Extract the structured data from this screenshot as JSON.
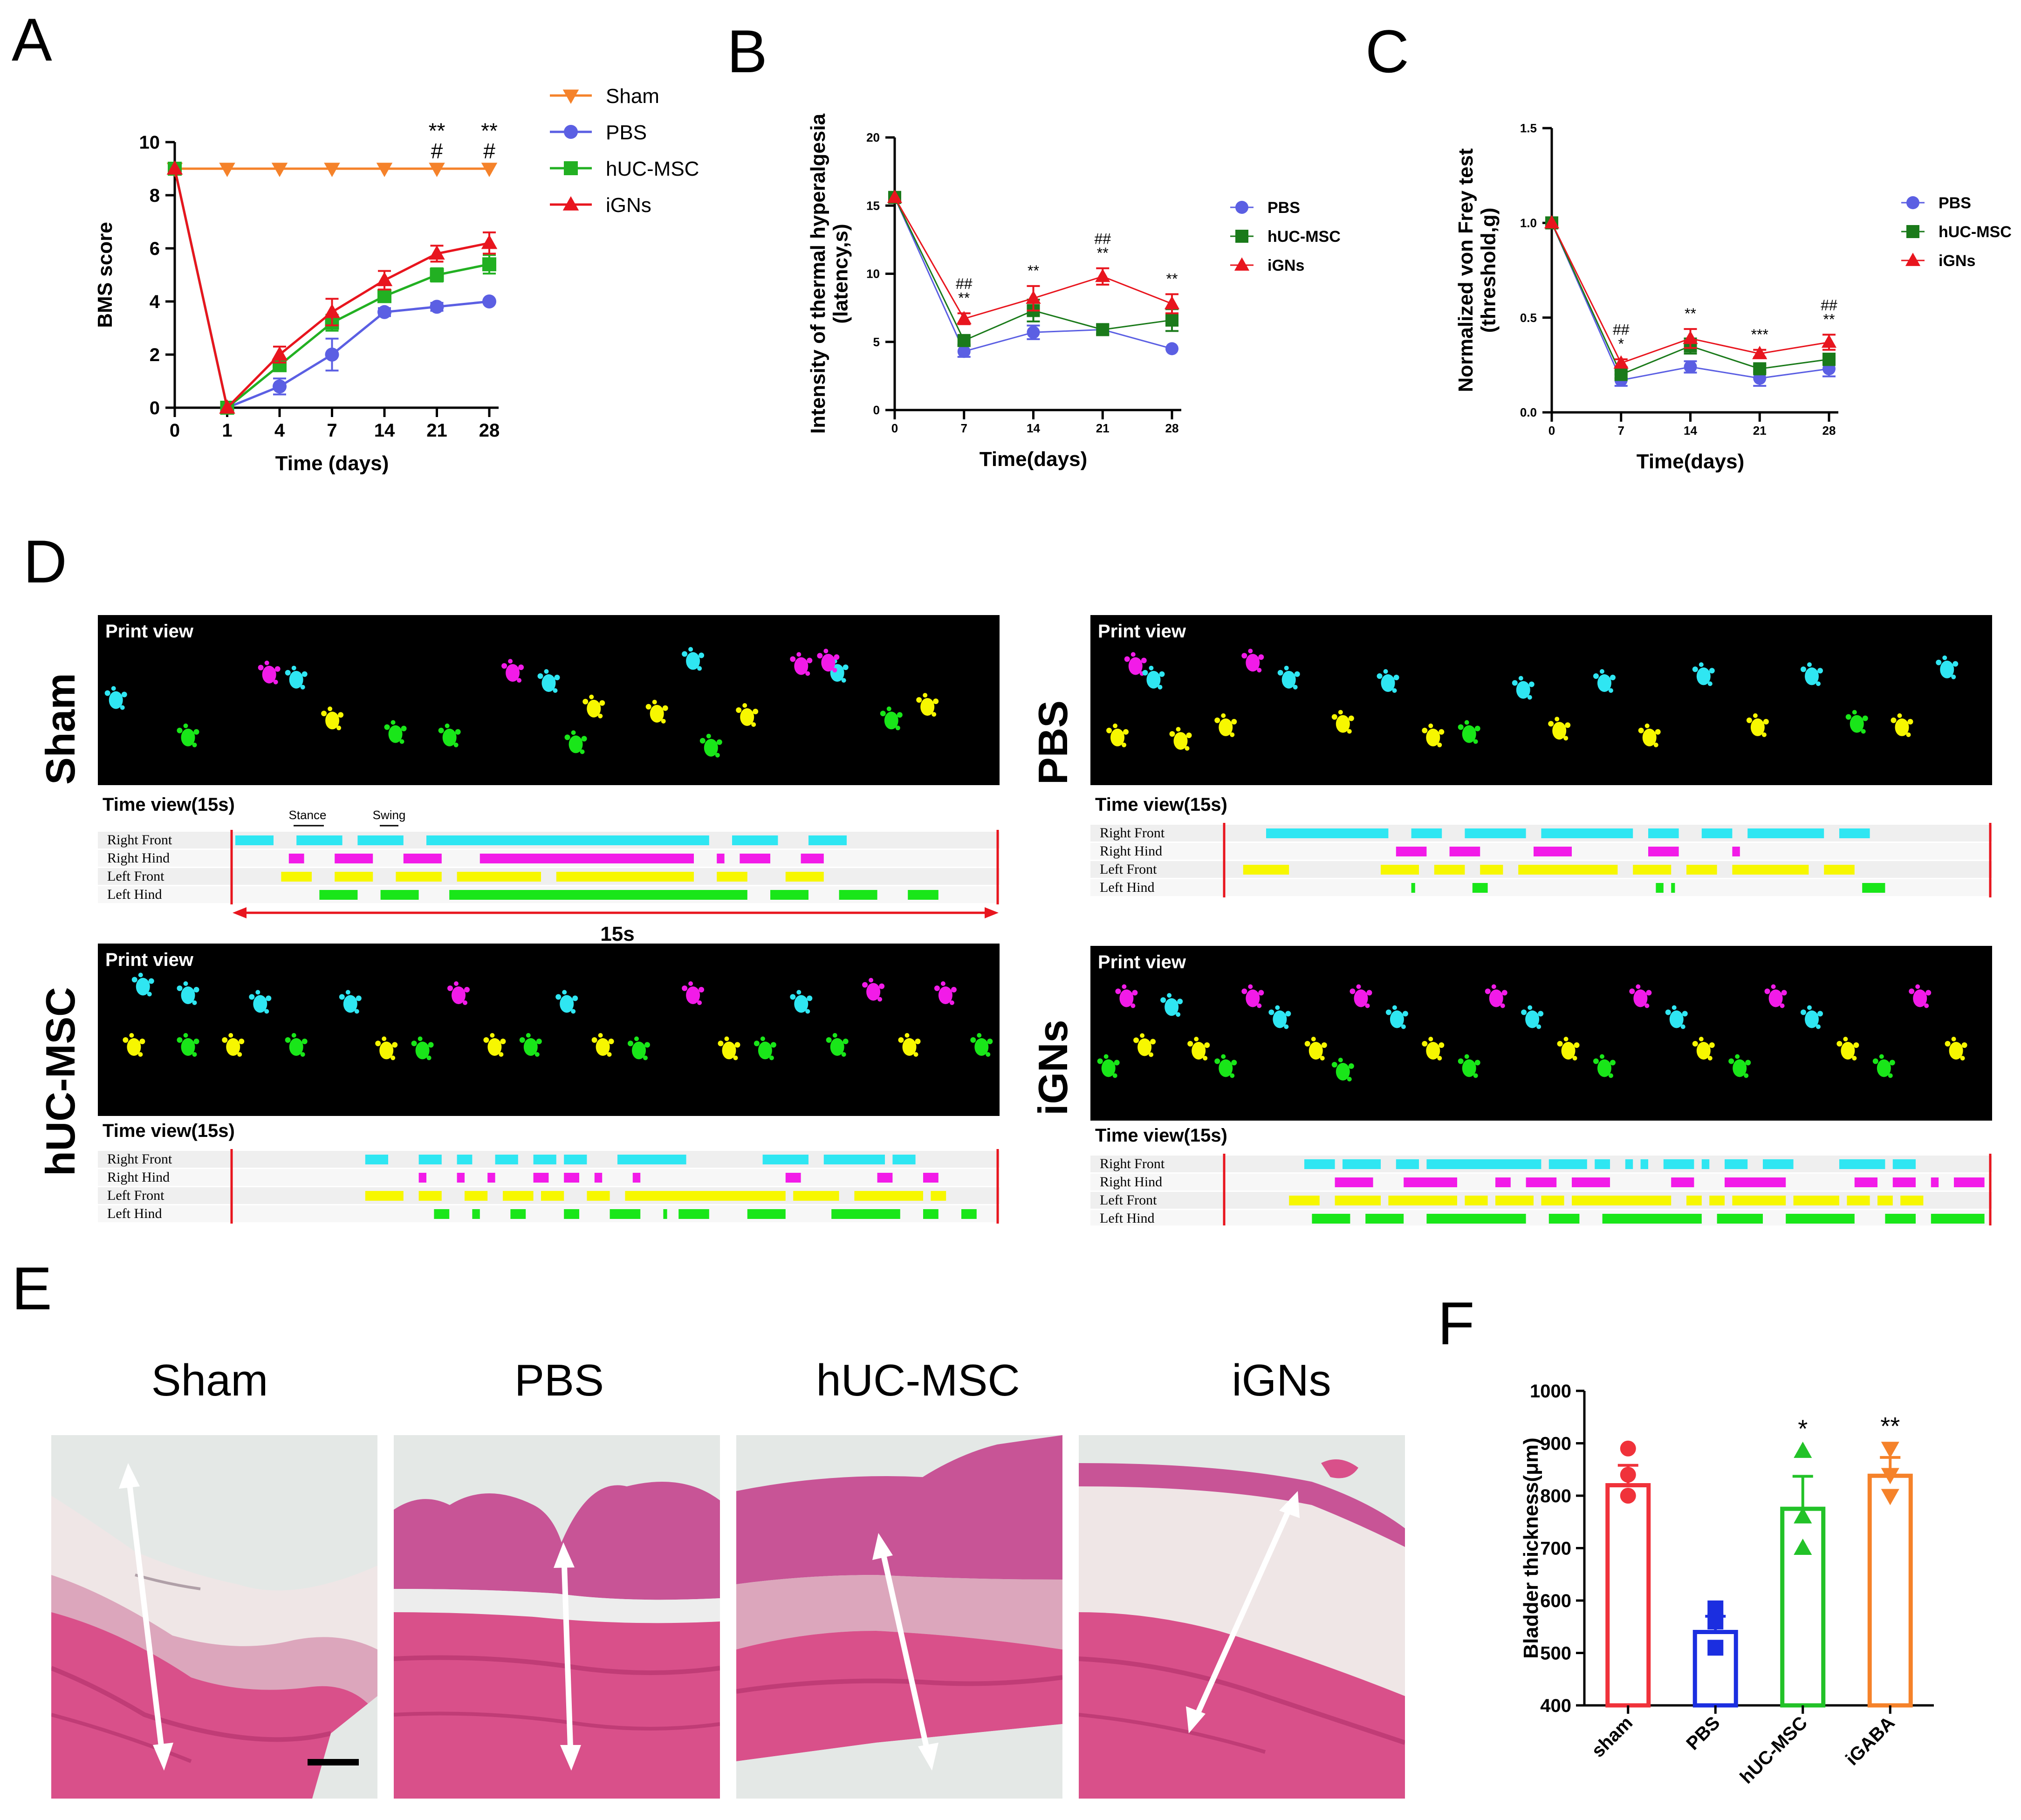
{
  "panel_labels": {
    "A": "A",
    "B": "B",
    "C": "C",
    "D": "D",
    "E": "E",
    "F": "F"
  },
  "colors": {
    "sham": "#F5822A",
    "pbs": "#5B5FE3",
    "hucmsc": "#22B022",
    "ignS": "#E8151E",
    "dark_green": "#1A7A1A",
    "f_sham": "#F0323A",
    "f_pbs": "#1B2EE0",
    "f_huc": "#22C228",
    "f_igaba": "#F5822A",
    "cyan": "#2FE6F2",
    "magenta": "#F21BE8",
    "yellow": "#F7F700",
    "green": "#19E619"
  },
  "chart_data": [
    {
      "id": "A",
      "type": "line",
      "title": "",
      "xlabel": "Time (days)",
      "ylabel": "BMS score",
      "categories": [
        "0",
        "1",
        "4",
        "7",
        "14",
        "21",
        "28"
      ],
      "ylim": [
        0,
        10
      ],
      "yticks": [
        "0",
        "2",
        "4",
        "6",
        "8",
        "10"
      ],
      "legend": "top-right",
      "series": [
        {
          "name": "Sham",
          "marker": "triangle-down",
          "values": [
            9,
            9,
            9,
            9,
            9,
            9,
            9
          ],
          "err": [
            0,
            0,
            0,
            0,
            0,
            0,
            0
          ]
        },
        {
          "name": "PBS",
          "marker": "circle",
          "values": [
            9,
            0,
            0.8,
            2.0,
            3.6,
            3.8,
            4.0
          ],
          "err": [
            0,
            0,
            0.3,
            0.6,
            0.15,
            0.15,
            0.05
          ]
        },
        {
          "name": "hUC-MSC",
          "marker": "square",
          "values": [
            9,
            0,
            1.6,
            3.2,
            4.2,
            5.0,
            5.4
          ],
          "err": [
            0,
            0,
            0.2,
            0.3,
            0.15,
            0.25,
            0.35
          ]
        },
        {
          "name": "iGNs",
          "marker": "triangle-up",
          "values": [
            9,
            0,
            2.0,
            3.6,
            4.8,
            5.8,
            6.2
          ],
          "err": [
            0,
            0,
            0.3,
            0.5,
            0.35,
            0.3,
            0.4
          ]
        }
      ],
      "annotations": [
        {
          "category": "21",
          "lines": [
            "**",
            "#"
          ]
        },
        {
          "category": "28",
          "lines": [
            "**",
            "#"
          ]
        }
      ]
    },
    {
      "id": "B",
      "type": "line",
      "title": "",
      "xlabel": "Time(days)",
      "ylabel": "Intensity of thermal hyperalgesia (latency,s)",
      "ylabel_lines": [
        "Intensity of thermal hyperalgesia",
        "(latency,s)"
      ],
      "categories": [
        "0",
        "7",
        "14",
        "21",
        "28"
      ],
      "ylim": [
        0,
        20
      ],
      "yticks": [
        "0",
        "5",
        "10",
        "15",
        "20"
      ],
      "legend": "right",
      "series": [
        {
          "name": "PBS",
          "marker": "circle",
          "values": [
            15.6,
            4.3,
            5.7,
            5.9,
            4.5
          ],
          "err": [
            0,
            0.4,
            0.5,
            0.4,
            0
          ]
        },
        {
          "name": "hUC-MSC",
          "marker": "square",
          "values": [
            15.6,
            5.1,
            7.3,
            5.9,
            6.6
          ],
          "err": [
            0,
            0.3,
            0.8,
            0.3,
            0.8
          ]
        },
        {
          "name": "iGNs",
          "marker": "triangle-up",
          "values": [
            15.6,
            6.7,
            8.2,
            9.8,
            7.8
          ],
          "err": [
            0,
            0.4,
            0.9,
            0.6,
            0.7
          ]
        }
      ],
      "annotations": [
        {
          "category": "7",
          "lines": [
            "##",
            "**"
          ]
        },
        {
          "category": "14",
          "lines": [
            "**"
          ]
        },
        {
          "category": "21",
          "lines": [
            "##",
            "**"
          ]
        },
        {
          "category": "28",
          "lines": [
            "**"
          ]
        }
      ]
    },
    {
      "id": "C",
      "type": "line",
      "title": "",
      "xlabel": "Time(days)",
      "ylabel": "Normalized von Frey test (threshold,g)",
      "ylabel_lines": [
        "Normalized von Frey test",
        "(threshold,g)"
      ],
      "categories": [
        "0",
        "7",
        "14",
        "21",
        "28"
      ],
      "ylim": [
        0,
        1.5
      ],
      "yticks": [
        "0.0",
        "0.5",
        "1.0",
        "1.5"
      ],
      "legend": "right",
      "series": [
        {
          "name": "PBS",
          "marker": "circle",
          "values": [
            1.0,
            0.17,
            0.24,
            0.18,
            0.23
          ],
          "err": [
            0,
            0.03,
            0.03,
            0.04,
            0.04
          ]
        },
        {
          "name": "hUC-MSC",
          "marker": "square",
          "values": [
            1.0,
            0.2,
            0.35,
            0.23,
            0.28
          ],
          "err": [
            0,
            0.02,
            0.04,
            0.02,
            0.03
          ]
        },
        {
          "name": "iGNs",
          "marker": "triangle-up",
          "values": [
            1.0,
            0.26,
            0.39,
            0.31,
            0.37
          ],
          "err": [
            0,
            0.02,
            0.05,
            0.02,
            0.04
          ]
        }
      ],
      "annotations": [
        {
          "category": "7",
          "lines": [
            "##",
            "*"
          ]
        },
        {
          "category": "14",
          "lines": [
            "**"
          ]
        },
        {
          "category": "21",
          "lines": [
            "***"
          ]
        },
        {
          "category": "28",
          "lines": [
            "##",
            "**"
          ]
        }
      ]
    },
    {
      "id": "F",
      "type": "bar",
      "title": "",
      "xlabel": "",
      "ylabel": "Bladder thickness(μm)",
      "categories": [
        "sham",
        "PBS",
        "hUC-MSC",
        "iGABA"
      ],
      "values": [
        820,
        540,
        775,
        838
      ],
      "err": [
        38,
        30,
        62,
        35
      ],
      "points": [
        [
          890,
          840,
          800
        ],
        [
          585,
          560,
          510
        ],
        [
          885,
          760,
          700
        ],
        [
          890,
          840,
          800
        ]
      ],
      "markers": [
        "circle",
        "square",
        "triangle-up",
        "triangle-down"
      ],
      "ylim": [
        400,
        1000
      ],
      "yticks": [
        "400",
        "500",
        "600",
        "700",
        "800",
        "900",
        "1000"
      ],
      "annotations": [
        "",
        "",
        "*",
        "**"
      ]
    }
  ],
  "panel_D": {
    "print_view_label": "Print view",
    "time_view_label": "Time view(15s)",
    "row_labels": [
      "Right Front",
      "Right Hind",
      "Left Front",
      "Left Hind"
    ],
    "stance_label": "Stance",
    "swing_label": "Swing",
    "duration_label": "15s",
    "groups": [
      {
        "name": "Sham",
        "rows": [
          [
            [
              0.0,
              0.05
            ],
            [
              0.08,
              0.14
            ],
            [
              0.16,
              0.22
            ],
            [
              0.25,
              0.62
            ],
            [
              0.65,
              0.71
            ],
            [
              0.75,
              0.8
            ]
          ],
          [
            [
              0.07,
              0.09
            ],
            [
              0.13,
              0.18
            ],
            [
              0.22,
              0.27
            ],
            [
              0.32,
              0.6
            ],
            [
              0.63,
              0.64
            ],
            [
              0.66,
              0.7
            ],
            [
              0.74,
              0.77
            ]
          ],
          [
            [
              0.06,
              0.1
            ],
            [
              0.13,
              0.18
            ],
            [
              0.21,
              0.27
            ],
            [
              0.29,
              0.4
            ],
            [
              0.42,
              0.6
            ],
            [
              0.63,
              0.67
            ],
            [
              0.72,
              0.77
            ]
          ],
          [
            [
              0.11,
              0.16
            ],
            [
              0.19,
              0.24
            ],
            [
              0.28,
              0.67
            ],
            [
              0.7,
              0.75
            ],
            [
              0.79,
              0.84
            ],
            [
              0.88,
              0.92
            ]
          ]
        ]
      },
      {
        "name": "PBS",
        "rows": [
          [
            [
              0.05,
              0.21
            ],
            [
              0.24,
              0.28
            ],
            [
              0.31,
              0.39
            ],
            [
              0.41,
              0.53
            ],
            [
              0.55,
              0.59
            ],
            [
              0.62,
              0.66
            ],
            [
              0.68,
              0.78
            ],
            [
              0.8,
              0.84
            ]
          ],
          [
            [
              0.22,
              0.26
            ],
            [
              0.29,
              0.33
            ],
            [
              0.4,
              0.45
            ],
            [
              0.55,
              0.59
            ],
            [
              0.66,
              0.67
            ]
          ],
          [
            [
              0.02,
              0.08
            ],
            [
              0.2,
              0.25
            ],
            [
              0.27,
              0.31
            ],
            [
              0.33,
              0.36
            ],
            [
              0.38,
              0.51
            ],
            [
              0.53,
              0.58
            ],
            [
              0.6,
              0.64
            ],
            [
              0.66,
              0.76
            ],
            [
              0.78,
              0.82
            ]
          ],
          [
            [
              0.24,
              0.245
            ],
            [
              0.32,
              0.34
            ],
            [
              0.56,
              0.57
            ],
            [
              0.58,
              0.585
            ],
            [
              0.83,
              0.86
            ]
          ]
        ]
      },
      {
        "name": "hUC-MSC",
        "rows": [
          [
            [
              0.17,
              0.2
            ],
            [
              0.24,
              0.27
            ],
            [
              0.29,
              0.31
            ],
            [
              0.34,
              0.37
            ],
            [
              0.39,
              0.42
            ],
            [
              0.43,
              0.46
            ],
            [
              0.5,
              0.59
            ],
            [
              0.69,
              0.75
            ],
            [
              0.77,
              0.85
            ],
            [
              0.86,
              0.89
            ]
          ],
          [
            [
              0.24,
              0.25
            ],
            [
              0.29,
              0.3
            ],
            [
              0.33,
              0.34
            ],
            [
              0.39,
              0.41
            ],
            [
              0.43,
              0.45
            ],
            [
              0.47,
              0.48
            ],
            [
              0.52,
              0.53
            ],
            [
              0.72,
              0.74
            ],
            [
              0.84,
              0.86
            ],
            [
              0.9,
              0.92
            ]
          ],
          [
            [
              0.17,
              0.22
            ],
            [
              0.24,
              0.27
            ],
            [
              0.3,
              0.33
            ],
            [
              0.35,
              0.39
            ],
            [
              0.4,
              0.43
            ],
            [
              0.46,
              0.49
            ],
            [
              0.51,
              0.72
            ],
            [
              0.73,
              0.79
            ],
            [
              0.81,
              0.9
            ],
            [
              0.91,
              0.93
            ]
          ],
          [
            [
              0.26,
              0.28
            ],
            [
              0.31,
              0.32
            ],
            [
              0.36,
              0.38
            ],
            [
              0.43,
              0.45
            ],
            [
              0.49,
              0.53
            ],
            [
              0.56,
              0.565
            ],
            [
              0.58,
              0.62
            ],
            [
              0.67,
              0.72
            ],
            [
              0.78,
              0.87
            ],
            [
              0.9,
              0.92
            ],
            [
              0.95,
              0.97
            ]
          ]
        ]
      },
      {
        "name": "iGNs",
        "rows": [
          [
            [
              0.1,
              0.14
            ],
            [
              0.15,
              0.2
            ],
            [
              0.22,
              0.25
            ],
            [
              0.26,
              0.41
            ],
            [
              0.42,
              0.47
            ],
            [
              0.48,
              0.5
            ],
            [
              0.52,
              0.53
            ],
            [
              0.54,
              0.55
            ],
            [
              0.57,
              0.61
            ],
            [
              0.62,
              0.63
            ],
            [
              0.65,
              0.68
            ],
            [
              0.7,
              0.74
            ],
            [
              0.8,
              0.86
            ],
            [
              0.87,
              0.9
            ]
          ],
          [
            [
              0.14,
              0.19
            ],
            [
              0.23,
              0.3
            ],
            [
              0.35,
              0.37
            ],
            [
              0.39,
              0.43
            ],
            [
              0.45,
              0.5
            ],
            [
              0.58,
              0.61
            ],
            [
              0.65,
              0.73
            ],
            [
              0.82,
              0.85
            ],
            [
              0.87,
              0.9
            ],
            [
              0.92,
              0.93
            ],
            [
              0.95,
              0.99
            ]
          ],
          [
            [
              0.08,
              0.12
            ],
            [
              0.14,
              0.2
            ],
            [
              0.21,
              0.3
            ],
            [
              0.31,
              0.34
            ],
            [
              0.35,
              0.4
            ],
            [
              0.41,
              0.44
            ],
            [
              0.45,
              0.58
            ],
            [
              0.6,
              0.62
            ],
            [
              0.63,
              0.65
            ],
            [
              0.66,
              0.73
            ],
            [
              0.74,
              0.8
            ],
            [
              0.81,
              0.84
            ],
            [
              0.85,
              0.87
            ],
            [
              0.88,
              0.91
            ]
          ],
          [
            [
              0.11,
              0.16
            ],
            [
              0.18,
              0.23
            ],
            [
              0.26,
              0.39
            ],
            [
              0.42,
              0.46
            ],
            [
              0.49,
              0.62
            ],
            [
              0.64,
              0.7
            ],
            [
              0.73,
              0.82
            ],
            [
              0.86,
              0.9
            ],
            [
              0.92,
              0.99
            ]
          ]
        ]
      }
    ]
  },
  "panel_E": {
    "labels": [
      "Sham",
      "PBS",
      "hUC-MSC",
      "iGNs"
    ]
  }
}
